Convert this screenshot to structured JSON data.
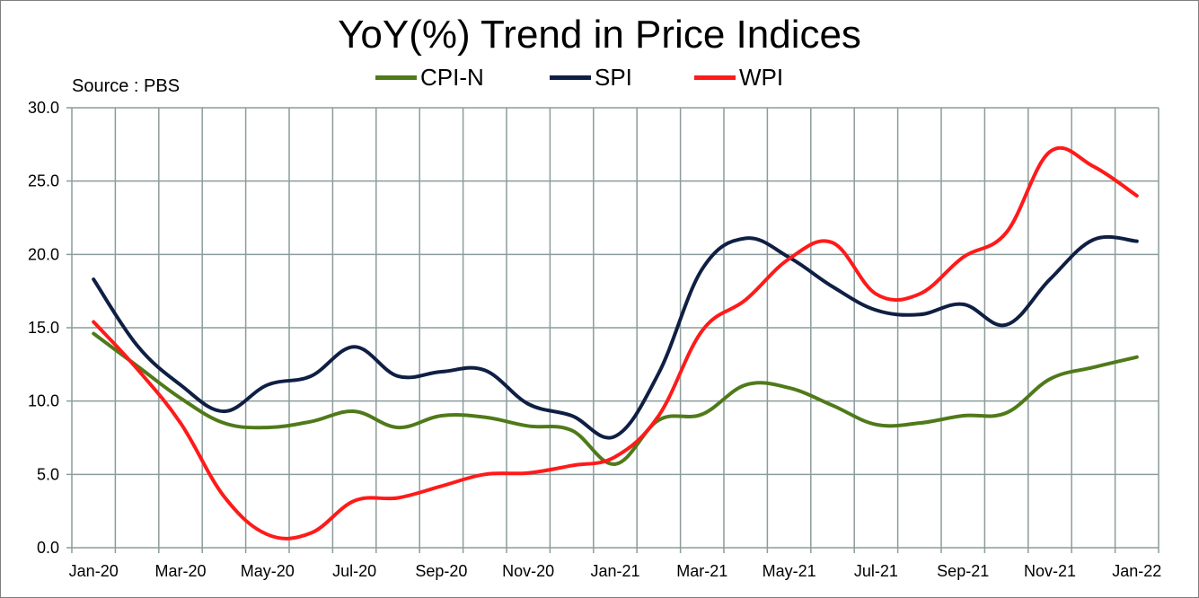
{
  "chart_data": {
    "type": "line",
    "title": "YoY(%) Trend in Price Indices",
    "source_note": "Source : PBS",
    "ylim": [
      0,
      30
    ],
    "yticks": [
      "0.0",
      "5.0",
      "10.0",
      "15.0",
      "20.0",
      "25.0",
      "30.0"
    ],
    "x": [
      "Jan-20",
      "Feb-20",
      "Mar-20",
      "Apr-20",
      "May-20",
      "Jun-20",
      "Jul-20",
      "Aug-20",
      "Sep-20",
      "Oct-20",
      "Nov-20",
      "Dec-20",
      "Jan-21",
      "Feb-21",
      "Mar-21",
      "Apr-21",
      "May-21",
      "Jun-21",
      "Jul-21",
      "Aug-21",
      "Sep-21",
      "Oct-21",
      "Nov-21",
      "Dec-21",
      "Jan-22"
    ],
    "xtick_labels": [
      "Jan-20",
      "Mar-20",
      "May-20",
      "Jul-20",
      "Sep-20",
      "Nov-20",
      "Jan-21",
      "Mar-21",
      "May-21",
      "Jul-21",
      "Sep-21",
      "Nov-21",
      "Jan-22"
    ],
    "grid": true,
    "legend_position": "top-center",
    "series": [
      {
        "name": "CPI-N",
        "color": "#4f7a1a",
        "values": [
          14.6,
          12.4,
          10.2,
          8.5,
          8.2,
          8.6,
          9.3,
          8.2,
          9.0,
          8.9,
          8.3,
          8.0,
          5.7,
          8.7,
          9.1,
          11.1,
          10.9,
          9.7,
          8.4,
          8.5,
          9.0,
          9.2,
          11.5,
          12.3,
          13.0
        ]
      },
      {
        "name": "SPI",
        "color": "#0f1f44",
        "values": [
          18.3,
          13.8,
          11.1,
          9.3,
          11.1,
          11.7,
          13.7,
          11.7,
          12.0,
          12.1,
          9.8,
          9.0,
          7.6,
          11.9,
          19.0,
          21.1,
          19.8,
          17.8,
          16.2,
          15.9,
          16.6,
          15.2,
          18.3,
          21.0,
          20.9
        ]
      },
      {
        "name": "WPI",
        "color": "#ff1a1a",
        "values": [
          15.4,
          12.2,
          8.5,
          3.5,
          0.9,
          1.0,
          3.2,
          3.4,
          4.2,
          5.0,
          5.1,
          5.6,
          6.2,
          9.0,
          14.8,
          16.9,
          19.7,
          20.8,
          17.3,
          17.3,
          19.8,
          21.5,
          27.0,
          26.0,
          24.0
        ]
      }
    ]
  }
}
